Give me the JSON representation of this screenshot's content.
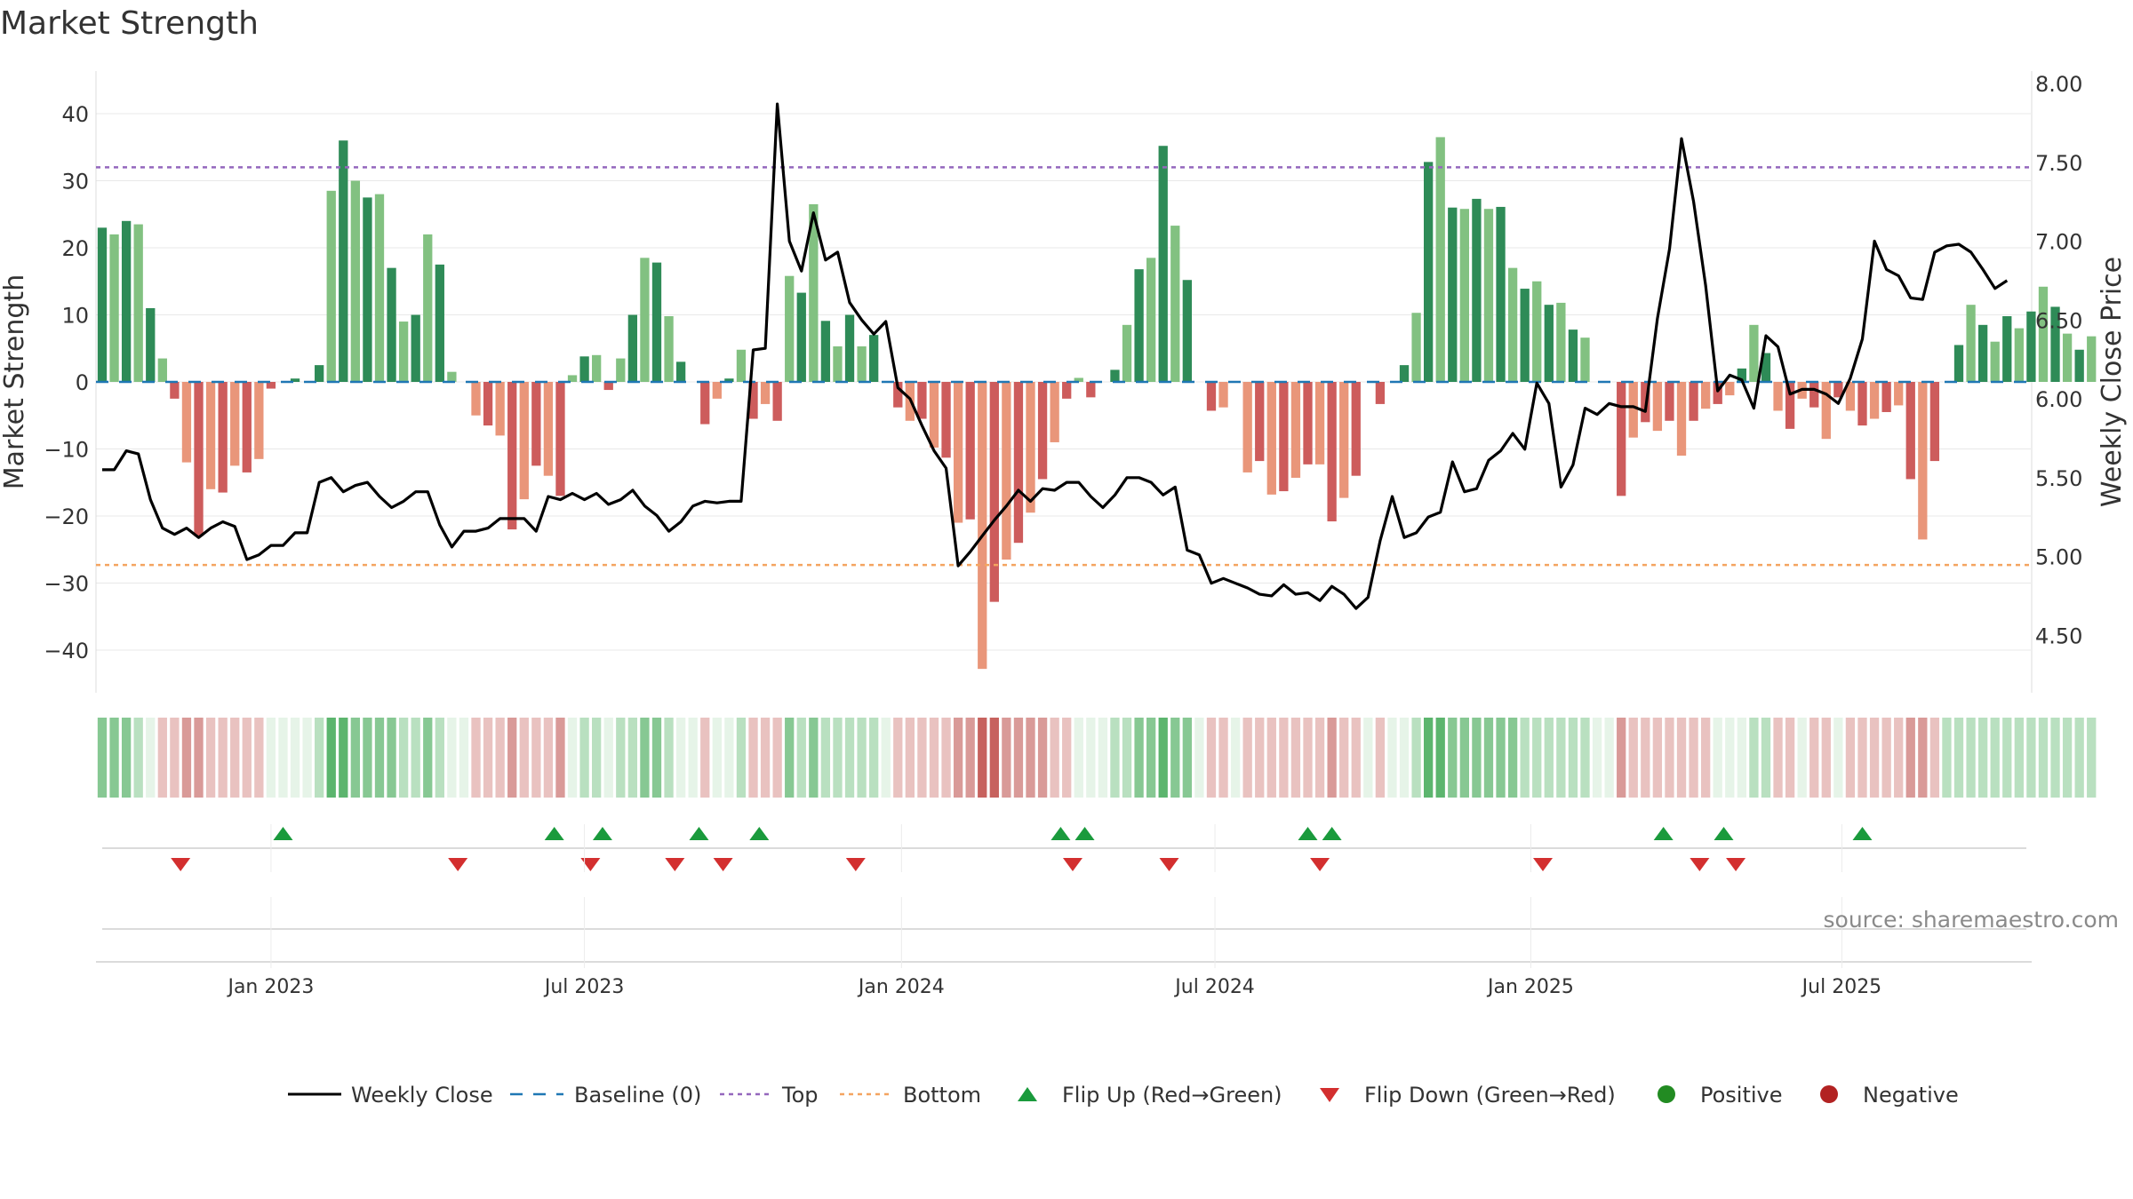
{
  "title": "Market Strength",
  "source": "source: sharemaestro.com",
  "chart_data": {
    "type": "bar",
    "title": "Market Strength",
    "ylabel": "Market Strength",
    "y2label": "Weekly Close Price",
    "ylim": [
      -47,
      47
    ],
    "y2lim": [
      4.2,
      8.0
    ],
    "y_ticks": [
      40,
      30,
      20,
      10,
      0,
      -10,
      -20,
      -30,
      -40
    ],
    "y_tick_labels": [
      "40",
      "30",
      "20",
      "10",
      "0",
      "−10",
      "−20",
      "−30",
      "−40"
    ],
    "y2_ticks": [
      8.0,
      7.5,
      7.0,
      6.5,
      6.0,
      5.5,
      5.0,
      4.5
    ],
    "y2_tick_labels": [
      "8.00",
      "7.50",
      "7.00",
      "6.50",
      "6.00",
      "5.50",
      "5.00",
      "4.50"
    ],
    "top_level": 32,
    "bottom_level": -27.3,
    "x_tick_labels": [
      {
        "week": 14,
        "label": "Jan 2023"
      },
      {
        "week": 40,
        "label": "Jul 2023"
      },
      {
        "week": 66.3,
        "label": "Jan 2024"
      },
      {
        "week": 92.3,
        "label": "Jul 2024"
      },
      {
        "week": 118.5,
        "label": "Jan 2025"
      },
      {
        "week": 144.3,
        "label": "Jul 2025"
      }
    ],
    "strength": [
      23,
      22,
      24,
      23.5,
      11,
      3.5,
      -2.5,
      -12,
      -23,
      -16,
      -16.5,
      -12.5,
      -13.5,
      -11.5,
      -1,
      0,
      0.5,
      0,
      2.5,
      28.5,
      36,
      30,
      27.5,
      28,
      17,
      9,
      10,
      22,
      17.5,
      1.5,
      0,
      -5,
      -6.5,
      -8,
      -22,
      -17.5,
      -12.5,
      -14,
      -17,
      1,
      3.8,
      4,
      -1.2,
      3.5,
      10,
      18.5,
      17.8,
      9.8,
      3,
      0,
      -6.3,
      -2.5,
      0.5,
      4.8,
      -5.5,
      -3.3,
      -5.8,
      15.8,
      13.3,
      26.5,
      9.1,
      5.3,
      10,
      5.3,
      7,
      0,
      -3.8,
      -5.8,
      -5.5,
      -9.8,
      -11.3,
      -21,
      -20.5,
      -42.8,
      -32.8,
      -26.5,
      -24,
      -19.5,
      -14.5,
      -9,
      -2.5,
      0.6,
      -2.3,
      0,
      1.8,
      8.5,
      16.8,
      18.5,
      35.2,
      23.3,
      15.2,
      0,
      -4.3,
      -3.8,
      0,
      -13.5,
      -11.8,
      -16.8,
      -16.3,
      -14.3,
      -12.3,
      -12.3,
      -20.8,
      -17.3,
      -14,
      0,
      -3.3,
      0,
      2.5,
      10.3,
      32.8,
      36.5,
      26,
      25.8,
      27.3,
      25.8,
      26.1,
      17,
      13.9,
      15,
      11.5,
      11.8,
      7.8,
      6.6,
      0,
      0,
      -17,
      -8.3,
      -6,
      -7.3,
      -5.8,
      -11,
      -5.8,
      -4,
      -3.3,
      -2,
      2,
      8.5,
      4.3,
      -4.3,
      -7,
      -2.5,
      -3.8,
      -8.5,
      -2.3,
      -4.3,
      -6.5,
      -5.5,
      -4.5,
      -3.5,
      -14.5,
      -23.5,
      -11.8,
      0,
      5.5,
      11.5,
      8.5,
      6,
      9.8,
      8,
      10.5,
      14.2,
      11.2,
      7.2,
      4.8,
      6.8
    ],
    "weekly_close": [
      5.55,
      5.55,
      5.67,
      5.65,
      5.36,
      5.18,
      5.14,
      5.18,
      5.12,
      5.18,
      5.22,
      5.19,
      4.98,
      5.01,
      5.07,
      5.07,
      5.15,
      5.15,
      5.47,
      5.5,
      5.41,
      5.45,
      5.47,
      5.38,
      5.31,
      5.35,
      5.41,
      5.41,
      5.2,
      5.06,
      5.16,
      5.16,
      5.18,
      5.24,
      5.24,
      5.24,
      5.16,
      5.38,
      5.36,
      5.4,
      5.36,
      5.4,
      5.33,
      5.36,
      5.42,
      5.32,
      5.26,
      5.16,
      5.22,
      5.32,
      5.35,
      5.34,
      5.35,
      5.35,
      6.31,
      6.32,
      7.87,
      7.0,
      6.81,
      7.18,
      6.88,
      6.93,
      6.61,
      6.5,
      6.41,
      6.49,
      6.07,
      6.0,
      5.83,
      5.67,
      5.56,
      4.94,
      5.03,
      5.13,
      5.23,
      5.32,
      5.42,
      5.35,
      5.43,
      5.42,
      5.47,
      5.47,
      5.38,
      5.31,
      5.39,
      5.5,
      5.5,
      5.47,
      5.39,
      5.44,
      5.04,
      5.01,
      4.83,
      4.86,
      4.83,
      4.8,
      4.76,
      4.75,
      4.82,
      4.76,
      4.77,
      4.72,
      4.81,
      4.76,
      4.67,
      4.74,
      5.1,
      5.38,
      5.12,
      5.15,
      5.25,
      5.28,
      5.6,
      5.41,
      5.43,
      5.61,
      5.67,
      5.78,
      5.68,
      6.1,
      5.97,
      5.44,
      5.58,
      5.94,
      5.9,
      5.97,
      5.95,
      5.95,
      5.92,
      6.51,
      6.95,
      7.65,
      7.25,
      6.72,
      6.05,
      6.15,
      6.12,
      5.94,
      6.4,
      6.33,
      6.03,
      6.06,
      6.06,
      6.03,
      5.97,
      6.13,
      6.38,
      7.0,
      6.82,
      6.78,
      6.64,
      6.63,
      6.93,
      6.97,
      6.98,
      6.93,
      6.82,
      6.7,
      6.75
    ],
    "heat_strip": [
      2,
      2,
      2,
      1,
      0,
      -1,
      -1,
      -2,
      -2,
      -1,
      -1,
      -1,
      -1,
      -1,
      0,
      0,
      0,
      0,
      1,
      3,
      3,
      2,
      2,
      2,
      2,
      1,
      1,
      2,
      1,
      0,
      0,
      -1,
      -1,
      -1,
      -2,
      -1,
      -1,
      -1,
      -2,
      0,
      1,
      1,
      0,
      1,
      1,
      2,
      2,
      1,
      0,
      0,
      -1,
      0,
      0,
      1,
      -1,
      -1,
      -1,
      2,
      1,
      2,
      1,
      1,
      1,
      1,
      1,
      0,
      -1,
      -1,
      -1,
      -1,
      -1,
      -2,
      -2,
      -3,
      -3,
      -2,
      -2,
      -2,
      -2,
      -1,
      -1,
      0,
      0,
      0,
      1,
      1,
      2,
      2,
      3,
      2,
      2,
      0,
      -1,
      -1,
      0,
      -1,
      -1,
      -1,
      -1,
      -1,
      -1,
      -1,
      -2,
      -1,
      -1,
      0,
      -1,
      0,
      0,
      1,
      3,
      3,
      2,
      2,
      2,
      2,
      2,
      2,
      1,
      1,
      1,
      1,
      1,
      1,
      0,
      0,
      -2,
      -1,
      -1,
      -1,
      -1,
      -1,
      -1,
      -1,
      0,
      0,
      0,
      1,
      1,
      -1,
      -1,
      0,
      -1,
      -1,
      0,
      -1,
      -1,
      -1,
      -1,
      -1,
      -2,
      -2,
      -1,
      1,
      1,
      1,
      1,
      1,
      1,
      1,
      1,
      1,
      1,
      1,
      1,
      1
    ],
    "flip_up_weeks": [
      15,
      37.5,
      41.5,
      49.5,
      54.5,
      79.5,
      81.5,
      100,
      102,
      129.5,
      134.5,
      146
    ],
    "flip_down_weeks": [
      6.5,
      29.5,
      40.5,
      47.5,
      51.5,
      62.5,
      80.5,
      88.5,
      101,
      119.5,
      132.5,
      135.5
    ],
    "colors": {
      "pos_strong": "#2e8b57",
      "pos_weak": "#82c181",
      "neg_strong": "#cd5c5c",
      "neg_weak": "#e9967a",
      "baseline": "#1f77b4",
      "top": "#9467bd",
      "bottom": "#f4a460",
      "weekly_close": "#000000",
      "flip_up": "#1a9a3c",
      "flip_down": "#d32f2f",
      "positive_dot": "#228b22",
      "negative_dot": "#b22222"
    },
    "legend": {
      "position": "bottom",
      "weekly_close": "Weekly Close",
      "baseline": "Baseline (0)",
      "top": "Top",
      "bottom": "Bottom",
      "flip_up": "Flip Up (Red→Green)",
      "flip_down": "Flip Down (Green→Red)",
      "positive": "Positive",
      "negative": "Negative"
    }
  }
}
